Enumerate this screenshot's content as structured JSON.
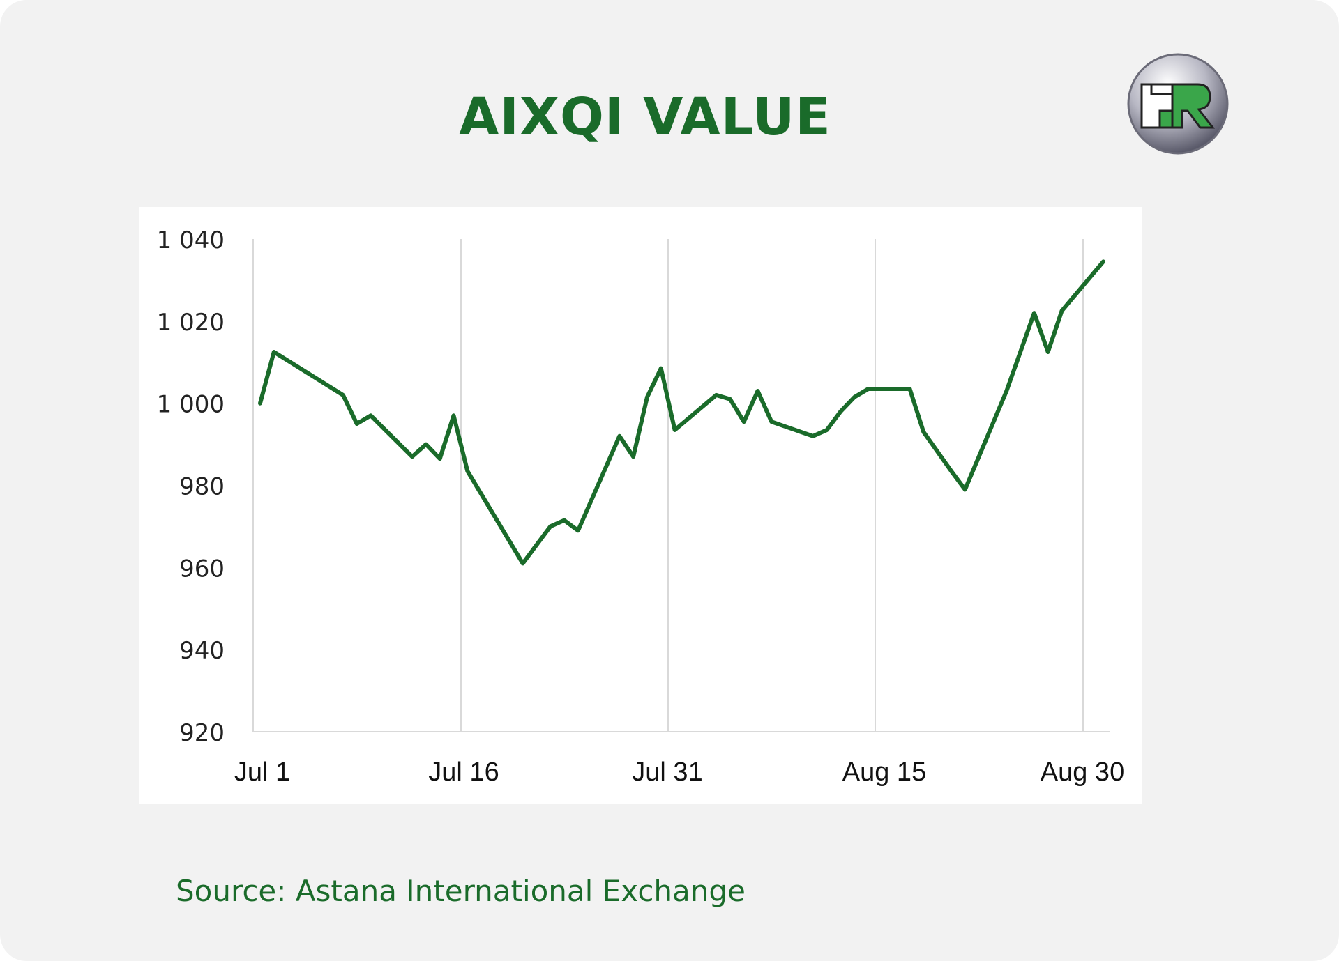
{
  "title": "AIXQI VALUE",
  "source": "Source: Astana International Exchange",
  "logo": {
    "text": "FR",
    "icon": "fr-logo-icon"
  },
  "colors": {
    "line": "#1a6b2a",
    "accent": "#1a6b2a",
    "grid": "#d9d9d9",
    "background": "#f2f2f2"
  },
  "chart_data": {
    "type": "line",
    "title": "AIXQI VALUE",
    "xlabel": "",
    "ylabel": "",
    "ylim": [
      920,
      1040
    ],
    "yticks": [
      920,
      940,
      960,
      980,
      1000,
      1020,
      1040
    ],
    "ytick_labels": [
      "920",
      "940",
      "960",
      "980",
      "1 000",
      "1 020",
      "1 040"
    ],
    "xticks": [
      "Jul 1",
      "Jul 16",
      "Jul 31",
      "Aug 15",
      "Aug 30"
    ],
    "grid": "vertical",
    "legend": "none",
    "series": [
      {
        "x": [
          "2024-07-01",
          "2024-07-02",
          "2024-07-07",
          "2024-07-08",
          "2024-07-09",
          "2024-07-12",
          "2024-07-13",
          "2024-07-14",
          "2024-07-15",
          "2024-07-16",
          "2024-07-20",
          "2024-07-22",
          "2024-07-23",
          "2024-07-24",
          "2024-07-27",
          "2024-07-28",
          "2024-07-29",
          "2024-07-30",
          "2024-07-31",
          "2024-08-03",
          "2024-08-04",
          "2024-08-05",
          "2024-08-06",
          "2024-08-07",
          "2024-08-10",
          "2024-08-11",
          "2024-08-12",
          "2024-08-13",
          "2024-08-14",
          "2024-08-17",
          "2024-08-18",
          "2024-08-20",
          "2024-08-21",
          "2024-08-24",
          "2024-08-26",
          "2024-08-27",
          "2024-08-28",
          "2024-08-31"
        ],
        "values": [
          1000,
          1012.5,
          1002,
          995,
          997,
          987,
          990,
          986.5,
          997,
          983.5,
          961,
          970,
          971.5,
          969,
          992,
          987,
          1001.5,
          1008.5,
          993.5,
          1002,
          1001,
          995.5,
          1003,
          995.5,
          992,
          993.5,
          998,
          1001.5,
          1003.5,
          1003.5,
          993,
          983.5,
          979,
          1003,
          1022,
          1012.5,
          1022.5,
          1034.5
        ]
      }
    ]
  }
}
